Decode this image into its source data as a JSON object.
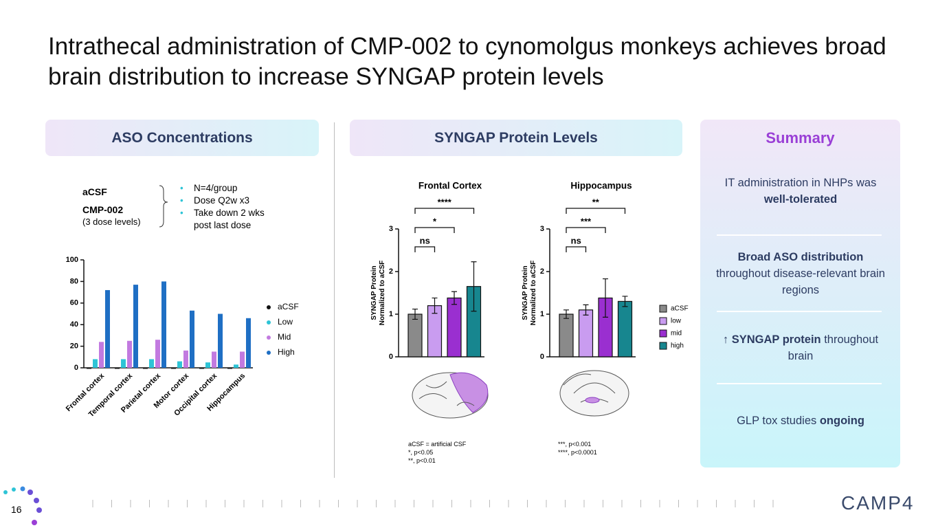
{
  "title": "Intrathecal administration of CMP-002 to cynomolgus monkeys achieves broad brain distribution to increase SYNGAP protein levels",
  "page_number": "16",
  "logo": "CAMP4",
  "aso_panel": {
    "heading": "ASO Concentrations",
    "groups": [
      "aCSF",
      "CMP-002"
    ],
    "group_note": "(3 dose levels)",
    "bullets": [
      "N=4/group",
      "Dose Q2w x3",
      "Take down 2 wks post last dose"
    ]
  },
  "syngap_panel": {
    "heading": "SYNGAP Protein Levels",
    "footnotes_left": [
      "aCSF = artificial CSF",
      "*, p<0.05",
      "**, p<0.01"
    ],
    "footnotes_right": [
      "***, p<0.001",
      "****, p<0.0001"
    ]
  },
  "summary": {
    "heading": "Summary",
    "items": [
      [
        {
          "text": "IT administration in NHPs was "
        },
        {
          "text": "well-tolerated",
          "bold": true
        }
      ],
      [
        {
          "text": "Broad ASO distribution",
          "bold": true
        },
        {
          "text": " throughout disease-relevant brain regions"
        }
      ],
      [
        {
          "text": "↑ SYNGAP protein",
          "bold": true
        },
        {
          "text": " throughout brain"
        }
      ],
      [
        {
          "text": "GLP tox studies "
        },
        {
          "text": "ongoing",
          "bold": true
        }
      ]
    ]
  },
  "chart_data": [
    {
      "type": "grouped_bar",
      "categories": [
        "Frontal cortex",
        "Temporal cortex",
        "Parietal cortex",
        "Motor cortex",
        "Occipital cortex",
        "Hippocampus"
      ],
      "series": [
        {
          "name": "aCSF",
          "color": "#111111",
          "values": [
            0,
            0,
            0,
            0,
            0,
            0
          ]
        },
        {
          "name": "Low",
          "color": "#2ec4d6",
          "values": [
            8,
            8,
            8,
            6,
            5,
            3
          ]
        },
        {
          "name": "Mid",
          "color": "#c27ae0",
          "values": [
            24,
            25,
            26,
            16,
            15,
            15
          ]
        },
        {
          "name": "High",
          "color": "#1f6fc4",
          "values": [
            72,
            77,
            80,
            53,
            50,
            46
          ]
        }
      ],
      "ylim": [
        0,
        100
      ],
      "yticks": [
        0,
        20,
        40,
        60,
        80,
        100
      ],
      "legend": "right"
    },
    {
      "type": "bar",
      "title": "Frontal Cortex",
      "y_label": "SYNGAP Protein Normalized to aCSF",
      "categories": [
        "aCSF",
        "low",
        "mid",
        "high"
      ],
      "colors": [
        "#8a8a8a",
        "#c99cf0",
        "#9a2fd0",
        "#17868f"
      ],
      "values": [
        1.0,
        1.2,
        1.38,
        1.65
      ],
      "errors": [
        0.12,
        0.18,
        0.15,
        0.58
      ],
      "ylim": [
        0,
        3
      ],
      "yticks": [
        0,
        1,
        2,
        3
      ],
      "comparisons": [
        {
          "label": "ns",
          "to": "low"
        },
        {
          "label": "*",
          "to": "mid"
        },
        {
          "label": "****",
          "to": "high"
        }
      ]
    },
    {
      "type": "bar",
      "title": "Hippocampus",
      "y_label": "SYNGAP Protein Normalized to aCSF",
      "categories": [
        "aCSF",
        "low",
        "mid",
        "high"
      ],
      "colors": [
        "#8a8a8a",
        "#c99cf0",
        "#9a2fd0",
        "#17868f"
      ],
      "values": [
        1.0,
        1.1,
        1.38,
        1.3
      ],
      "errors": [
        0.1,
        0.12,
        0.45,
        0.12
      ],
      "ylim": [
        0,
        3
      ],
      "yticks": [
        0,
        1,
        2,
        3
      ],
      "comparisons": [
        {
          "label": "ns",
          "to": "low"
        },
        {
          "label": "***",
          "to": "mid"
        },
        {
          "label": "**",
          "to": "high"
        }
      ],
      "legend": "right"
    }
  ]
}
